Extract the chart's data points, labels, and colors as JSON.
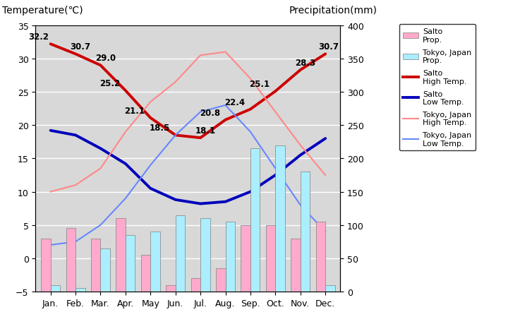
{
  "months": [
    "Jan.",
    "Feb.",
    "Mar.",
    "Apr.",
    "May",
    "Jun.",
    "Jul.",
    "Aug.",
    "Sep.",
    "Oct.",
    "Nov.",
    "Dec."
  ],
  "salto_precip_mm": [
    80,
    95,
    80,
    110,
    55,
    10,
    20,
    35,
    100,
    100,
    80,
    105
  ],
  "tokyo_precip_mm": [
    10,
    5,
    65,
    85,
    90,
    115,
    110,
    105,
    215,
    220,
    180,
    10
  ],
  "salto_high": [
    32.2,
    30.7,
    29.0,
    25.2,
    21.1,
    18.5,
    18.1,
    20.8,
    22.4,
    25.1,
    28.3,
    30.7
  ],
  "salto_low": [
    19.2,
    18.5,
    16.5,
    14.2,
    10.5,
    8.8,
    8.2,
    8.5,
    10.0,
    12.5,
    15.5,
    18.0
  ],
  "tokyo_high": [
    10.0,
    11.0,
    13.5,
    19.0,
    23.5,
    26.5,
    30.5,
    31.0,
    27.0,
    22.0,
    17.0,
    12.5
  ],
  "tokyo_low": [
    2.0,
    2.5,
    5.0,
    9.0,
    14.0,
    18.5,
    22.0,
    23.0,
    19.0,
    13.5,
    8.0,
    4.0
  ],
  "salto_high_color": "#cc0000",
  "salto_low_color": "#0000bb",
  "tokyo_high_color": "#ff8888",
  "tokyo_low_color": "#6688ff",
  "salto_precip_color": "#ffaacc",
  "tokyo_precip_color": "#aaeeff",
  "bar_width": 0.38,
  "temp_ylim": [
    -5,
    35
  ],
  "precip_ylim": [
    0,
    400
  ],
  "temp_yticks": [
    -5,
    0,
    5,
    10,
    15,
    20,
    25,
    30,
    35
  ],
  "precip_yticks": [
    0,
    50,
    100,
    150,
    200,
    250,
    300,
    350,
    400
  ],
  "title_left": "Temperature(℃)",
  "title_right": "Precipitation(mm)",
  "background_color": "#d8d8d8",
  "grid_color": "white"
}
